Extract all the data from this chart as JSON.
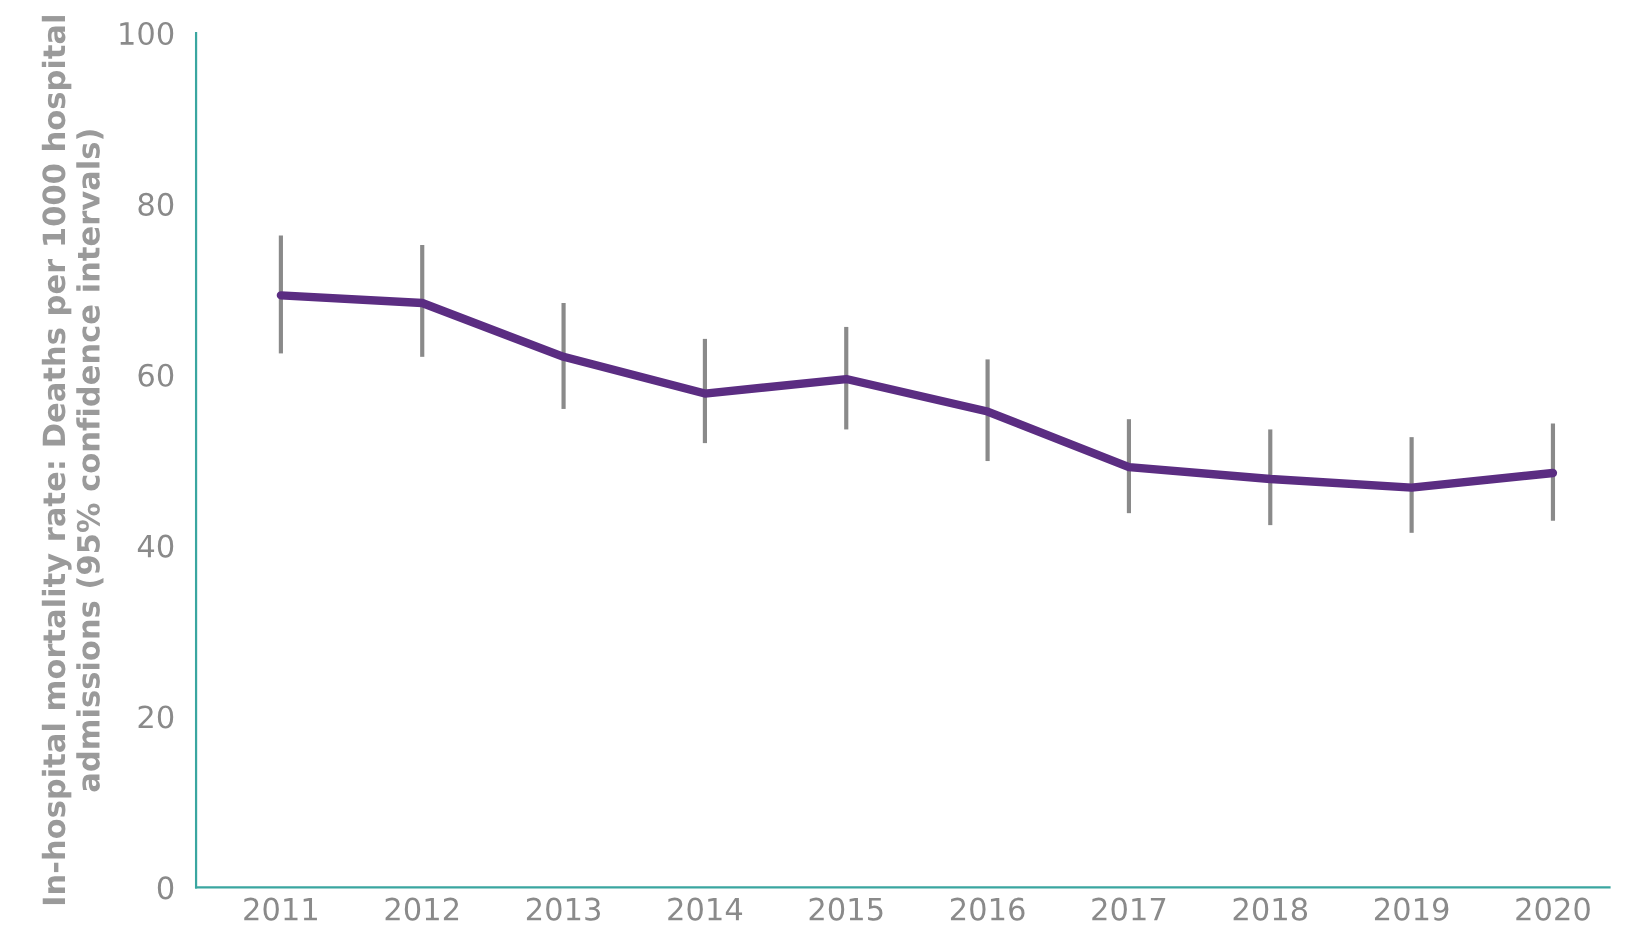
{
  "chart_data": {
    "type": "line",
    "ylabel": "In-hospital mortality rate: Deaths per 1000 hospital admissions (95% confidence intervals)",
    "categories": [
      "2011",
      "2012",
      "2013",
      "2014",
      "2015",
      "2016",
      "2017",
      "2018",
      "2019",
      "2020"
    ],
    "series": [
      {
        "color": "#5b2d82",
        "values": [
          69.3,
          68.4,
          62.1,
          57.8,
          59.5,
          55.7,
          49.2,
          47.8,
          46.8,
          48.5
        ],
        "errors": [
          [
            62.5,
            76.3
          ],
          [
            62.1,
            75.2
          ],
          [
            56.0,
            68.4
          ],
          [
            52.0,
            64.2
          ],
          [
            53.6,
            65.6
          ],
          [
            49.9,
            61.8
          ],
          [
            43.8,
            54.8
          ],
          [
            42.4,
            53.6
          ],
          [
            41.5,
            52.7
          ],
          [
            42.9,
            54.3
          ]
        ]
      }
    ],
    "ylim": [
      0,
      100
    ],
    "yticks": [
      0,
      20,
      40,
      60,
      80,
      100
    ],
    "grid": false,
    "legend": false,
    "marker": "none",
    "line_style": "solid"
  }
}
